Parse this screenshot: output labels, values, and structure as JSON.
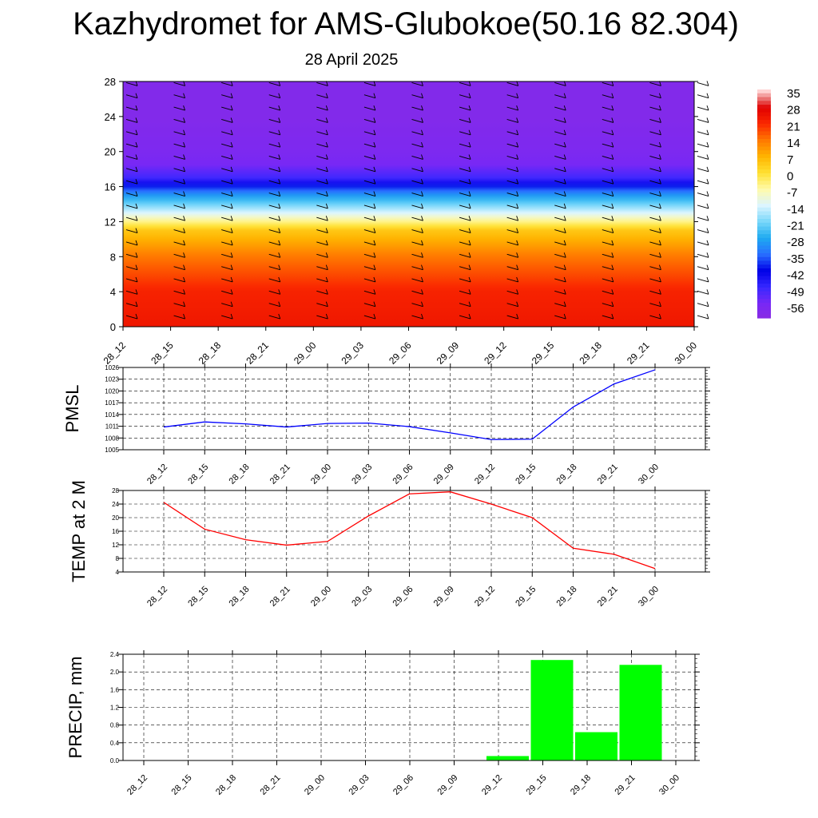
{
  "title": "Kazhydromet for AMS-Glubokoe(50.16 82.304)",
  "subtitle": "28 April 2025",
  "colors": {
    "pmsl_line": "#0000ff",
    "temp_line": "#ff0000",
    "precip_bar": "#00ff00",
    "grid": "#000000"
  },
  "chart_data": [
    {
      "type": "heatmap",
      "title": "",
      "xlabel": "",
      "ylabel": "",
      "x": [
        "28_12",
        "28_15",
        "28_18",
        "28_21",
        "29_00",
        "29_03",
        "29_06",
        "29_09",
        "29_12",
        "29_15",
        "29_18",
        "29_21",
        "30_00"
      ],
      "yticks": [
        0,
        4,
        8,
        12,
        16,
        20,
        24,
        28
      ],
      "ylim": [
        0,
        28
      ],
      "colorbar": {
        "labels": [
          "35",
          "28",
          "21",
          "14",
          "7",
          "0",
          "-7",
          "-14",
          "-21",
          "-28",
          "-35",
          "-42",
          "-49",
          "-56"
        ],
        "range": [
          -63,
          35
        ]
      },
      "temperature_profile": [
        {
          "level": 0,
          "value": 24
        },
        {
          "level": 4,
          "value": 22
        },
        {
          "level": 8,
          "value": 14
        },
        {
          "level": 11,
          "value": 4
        },
        {
          "level": 13,
          "value": -14
        },
        {
          "level": 15,
          "value": -30
        },
        {
          "level": 17,
          "value": -50
        },
        {
          "level": 18.5,
          "value": -56
        },
        {
          "level": 20,
          "value": -58
        },
        {
          "level": 24,
          "value": -60
        },
        {
          "level": 28,
          "value": -60
        }
      ]
    },
    {
      "type": "line",
      "title": "",
      "xlabel": "",
      "ylabel": "PMSL",
      "categories": [
        "28_12",
        "28_15",
        "28_18",
        "28_21",
        "29_00",
        "29_03",
        "29_06",
        "29_09",
        "29_12",
        "29_15",
        "29_18",
        "29_21",
        "30_00"
      ],
      "ylim": [
        1005,
        1026
      ],
      "yticks": [
        "1005",
        "1008",
        "1011",
        "1014",
        "1017",
        "1020",
        "1023",
        "1026"
      ],
      "series": [
        {
          "values": [
            1010.8,
            1012.1,
            1011.6,
            1010.8,
            1011.7,
            1011.8,
            1010.9,
            1009.3,
            1007.6,
            1007.7,
            1015.9,
            1021.8,
            1025.4
          ]
        }
      ]
    },
    {
      "type": "line",
      "title": "",
      "xlabel": "",
      "ylabel": "TEMP at 2 M",
      "categories": [
        "28_12",
        "28_15",
        "28_18",
        "28_21",
        "29_00",
        "29_03",
        "29_06",
        "29_09",
        "29_12",
        "29_15",
        "29_18",
        "29_21",
        "30_00"
      ],
      "ylim": [
        4,
        28
      ],
      "yticks": [
        "4",
        "8",
        "12",
        "16",
        "20",
        "24",
        "28"
      ],
      "series": [
        {
          "values": [
            24.5,
            16.6,
            13.5,
            11.9,
            13.0,
            20.5,
            27.0,
            27.6,
            24.0,
            20.0,
            11.0,
            9.2,
            5.0
          ]
        }
      ]
    },
    {
      "type": "bar",
      "title": "",
      "xlabel": "",
      "ylabel": "PRECIP, mm",
      "categories": [
        "28_12",
        "28_15",
        "28_18",
        "28_21",
        "29_00",
        "29_03",
        "29_06",
        "29_09",
        "29_12",
        "29_15",
        "29_18",
        "29_21",
        "30_00"
      ],
      "ylim": [
        0,
        2.4
      ],
      "yticks": [
        "0.0",
        "0.4",
        "0.8",
        "1.2",
        "1.6",
        "2.0",
        "2.4"
      ],
      "values": [
        0,
        0,
        0,
        0,
        0,
        0,
        0,
        0,
        0.1,
        2.27,
        0.64,
        2.16,
        0
      ]
    }
  ]
}
